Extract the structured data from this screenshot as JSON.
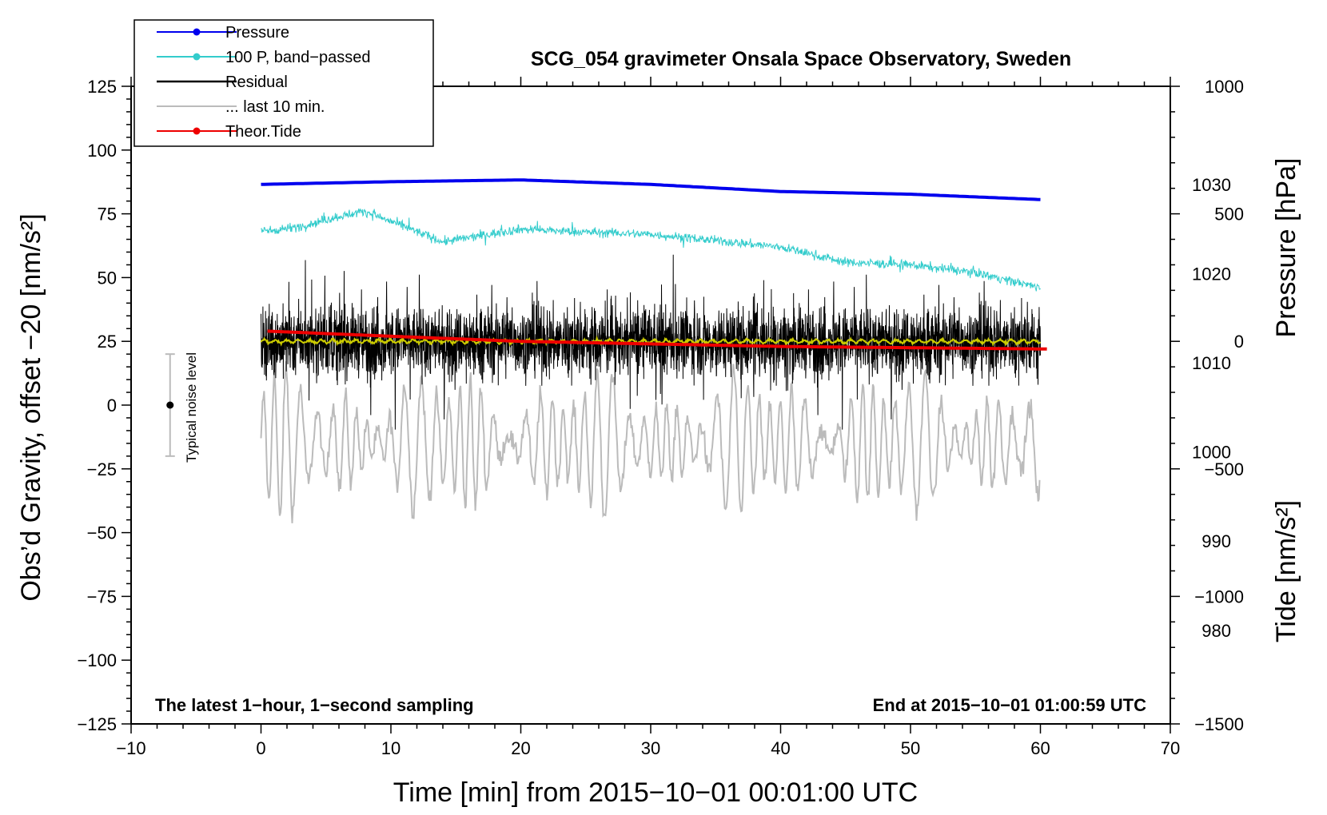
{
  "chart_data": {
    "type": "line",
    "title": "SCG_054 gravimeter Onsala Space Observatory, Sweden",
    "xlabel": "Time [min] from 2015−10−01 00:01:00 UTC",
    "ylabel_left": "Obs’d Gravity, offset −20 [nm/s²]",
    "ylabel_right_pressure": "Pressure [hPa]",
    "ylabel_right_tide": "Tide [nm/s²]",
    "xlim": [
      -10,
      70
    ],
    "ylim_left": [
      -125,
      125
    ],
    "x_ticks": [
      "−10",
      "0",
      "10",
      "20",
      "30",
      "40",
      "50",
      "60",
      "70"
    ],
    "x_tick_values": [
      -10,
      0,
      10,
      20,
      30,
      40,
      50,
      60,
      70
    ],
    "y_ticks_left": [
      "125",
      "100",
      "75",
      "50",
      "25",
      "0",
      "−25",
      "−50",
      "−75",
      "−100",
      "−125"
    ],
    "y_tick_values_left": [
      125,
      100,
      75,
      50,
      25,
      0,
      -25,
      -50,
      -75,
      -100,
      -125
    ],
    "pressure_axis": {
      "ticks": [
        "1030",
        "1020",
        "1010",
        "1000",
        "990",
        "980"
      ],
      "tick_values": [
        1030,
        1020,
        1010,
        1000,
        990,
        980
      ],
      "range": [
        969.5,
        1041
      ]
    },
    "tide_axis": {
      "ticks": [
        "1000",
        "500",
        "0",
        "−500",
        "−1000",
        "−1500"
      ],
      "tick_values": [
        1000,
        500,
        0,
        -500,
        -1000,
        -1500
      ],
      "range": [
        -1500,
        1000
      ]
    },
    "annotations": {
      "bottom_left": "The latest 1−hour, 1−second sampling",
      "bottom_right": "End at 2015−10−01 01:00:59 UTC",
      "noise_label": "Typical noise level",
      "noise_center": 0,
      "noise_halfwidth": 20,
      "noise_x": -7
    },
    "legend": [
      {
        "label": "Pressure",
        "color": "#0000ee",
        "marker": true
      },
      {
        "label": "100 P, band−passed",
        "color": "#33cccc",
        "marker": true
      },
      {
        "label": "Residual",
        "color": "#000000",
        "marker": false
      },
      {
        "label": "... last 10 min.",
        "color": "#bbbbbb",
        "marker": false
      },
      {
        "label": "Theor.Tide",
        "color": "#ee0000",
        "marker": true
      }
    ],
    "series": [
      {
        "name": "Pressure",
        "axis": "pressure",
        "color": "#0000ee",
        "x": [
          0,
          10,
          20,
          30,
          40,
          50,
          60
        ],
        "values": [
          1030.0,
          1030.3,
          1030.5,
          1030.0,
          1029.2,
          1028.9,
          1028.3
        ]
      },
      {
        "name": "100 P, band−passed",
        "axis": "left",
        "color": "#33cccc",
        "x": [
          0,
          3,
          6,
          8,
          10,
          14,
          20,
          24,
          30,
          36,
          40,
          45,
          50,
          55,
          60
        ],
        "values": [
          68,
          70,
          74,
          76,
          72,
          64,
          69,
          68,
          67,
          64,
          62,
          56,
          55,
          52,
          46
        ]
      },
      {
        "name": "Residual",
        "axis": "left",
        "color": "#000000",
        "x": [
          0,
          60
        ],
        "values": [
          25,
          25
        ],
        "spread": 12
      },
      {
        "name": "Residual smoothed",
        "axis": "left",
        "color": "#cccc00",
        "x": [
          0,
          60
        ],
        "values": [
          25,
          25
        ]
      },
      {
        "name": "... last 10 min.",
        "axis": "tide",
        "color": "#bbbbbb",
        "x": [
          0,
          60
        ],
        "values": [
          -400,
          -400
        ],
        "spread": 300
      },
      {
        "name": "Theor.Tide",
        "axis": "tide",
        "color": "#ee0000",
        "x": [
          0.5,
          10,
          20,
          30,
          40,
          50,
          60.5
        ],
        "values": [
          40,
          20,
          0,
          -10,
          -20,
          -25,
          -30
        ]
      }
    ]
  }
}
